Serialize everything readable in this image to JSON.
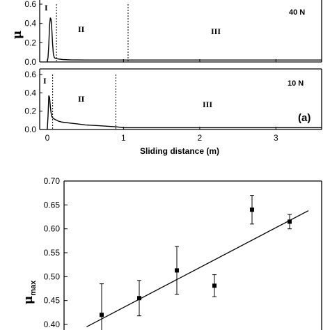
{
  "chart_data": [
    {
      "type": "line",
      "panel": "top",
      "load_label": "40 N",
      "ylabel": "μ",
      "ylim": [
        0,
        0.6
      ],
      "xlim": [
        -0.1,
        3.6
      ],
      "y_ticks": [
        "0.0",
        "0.2",
        "0.4",
        "0.6"
      ],
      "regions": [
        "I",
        "II",
        "III"
      ],
      "region_boundaries": [
        0.12,
        1.06
      ],
      "series": [
        {
          "x": [
            0.0,
            0.01,
            0.02,
            0.03,
            0.04,
            0.05,
            0.06,
            0.07,
            0.08,
            0.09,
            0.1,
            0.12,
            0.15,
            0.2,
            0.3,
            0.5,
            0.8,
            1.06,
            1.5,
            2.0,
            2.5,
            3.0,
            3.5,
            3.6
          ],
          "y": [
            0.0,
            0.05,
            0.18,
            0.38,
            0.46,
            0.44,
            0.33,
            0.18,
            0.08,
            0.05,
            0.04,
            0.035,
            0.03,
            0.025,
            0.022,
            0.02,
            0.02,
            0.02,
            0.02,
            0.02,
            0.02,
            0.02,
            0.02,
            0.02
          ]
        }
      ]
    },
    {
      "type": "line",
      "panel": "middle",
      "load_label": "10 N",
      "panel_label": "(a)",
      "ylabel": "",
      "xlabel": "Sliding distance (m)",
      "ylim": [
        0,
        0.6
      ],
      "xlim": [
        -0.1,
        3.6
      ],
      "y_ticks": [
        "0.0",
        "0.2",
        "0.4",
        "0.6"
      ],
      "x_ticks": [
        "0",
        "1",
        "2",
        "3"
      ],
      "regions": [
        "I",
        "II",
        "III"
      ],
      "region_boundaries": [
        0.07,
        0.9
      ],
      "series": [
        {
          "x": [
            0.0,
            0.01,
            0.02,
            0.03,
            0.04,
            0.05,
            0.06,
            0.08,
            0.1,
            0.15,
            0.2,
            0.3,
            0.4,
            0.5,
            0.6,
            0.7,
            0.8,
            0.9,
            1.0,
            1.5,
            2.0,
            2.5,
            3.0,
            3.5,
            3.6
          ],
          "y": [
            0.0,
            0.15,
            0.37,
            0.35,
            0.25,
            0.18,
            0.14,
            0.12,
            0.11,
            0.09,
            0.08,
            0.07,
            0.06,
            0.05,
            0.045,
            0.04,
            0.035,
            0.03,
            0.02,
            0.02,
            0.02,
            0.02,
            0.02,
            0.02,
            0.02
          ]
        }
      ]
    },
    {
      "type": "scatter",
      "panel": "bottom",
      "ylabel": "μ",
      "ylabel_sub": "max",
      "ylim": [
        0.4,
        0.7
      ],
      "y_ticks": [
        "0.40",
        "0.45",
        "0.50",
        "0.55",
        "0.60",
        "0.65",
        "0.70"
      ],
      "points": [
        {
          "x": 1,
          "y": 0.42,
          "err": 0.065
        },
        {
          "x": 2,
          "y": 0.455,
          "err": 0.037
        },
        {
          "x": 3,
          "y": 0.513,
          "err": 0.05
        },
        {
          "x": 4,
          "y": 0.481,
          "err": 0.023
        },
        {
          "x": 5,
          "y": 0.64,
          "err": 0.03
        },
        {
          "x": 6,
          "y": 0.615,
          "err": 0.015
        }
      ],
      "fit_line": {
        "x": [
          0.6,
          6.5
        ],
        "y": [
          0.395,
          0.638
        ]
      }
    }
  ]
}
